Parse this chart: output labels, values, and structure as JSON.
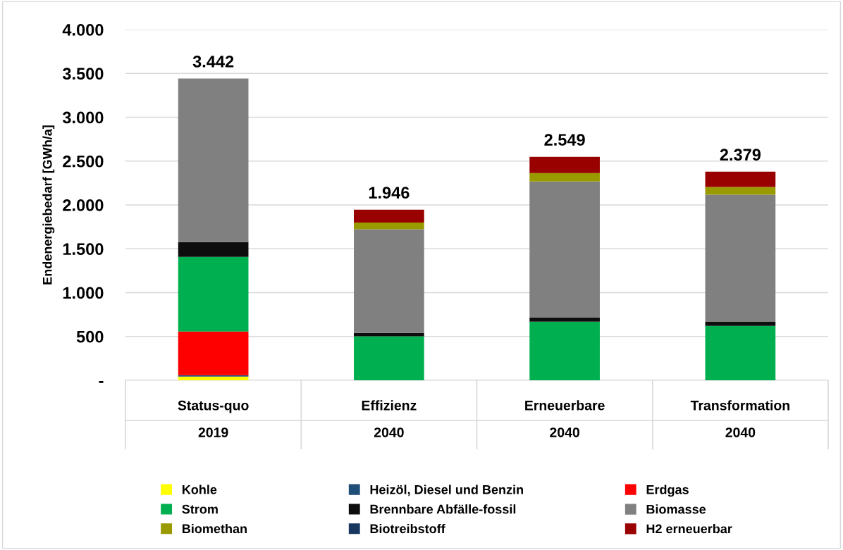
{
  "chart_data": {
    "type": "bar",
    "stacked": true,
    "ylabel": "Endenergiebedarf [GWh/a]",
    "categories": [
      "Status-quo\n2019",
      "Effizienz\n2040",
      "Erneuerbare\n2040",
      "Transformation\n2040"
    ],
    "series": [
      {
        "name": "Kohle",
        "color": "#ffff00",
        "values": [
          43,
          0,
          0,
          0
        ]
      },
      {
        "name": "Heizöl, Diesel und Benzin",
        "color": "#1f4e79",
        "values": [
          15,
          0,
          0,
          0
        ]
      },
      {
        "name": "Erdgas",
        "color": "#ff0000",
        "values": [
          498,
          0,
          0,
          0
        ]
      },
      {
        "name": "Strom",
        "color": "#00b050",
        "values": [
          852,
          502,
          669,
          620
        ]
      },
      {
        "name": "Brennbare Abfälle-fossil",
        "color": "#0d0d0d",
        "values": [
          169,
          38,
          48,
          46
        ]
      },
      {
        "name": "Biomasse",
        "color": "#808080",
        "values": [
          1865,
          1182,
          1550,
          1451
        ]
      },
      {
        "name": "Biomethan",
        "color": "#999900",
        "values": [
          0,
          77,
          96,
          88
        ]
      },
      {
        "name": "Biotreibstoff",
        "color": "#17375e",
        "values": [
          0,
          0,
          0,
          0
        ]
      },
      {
        "name": "H2 erneuerbar",
        "color": "#990000",
        "values": [
          0,
          147,
          186,
          174
        ]
      }
    ],
    "totals": [
      "3.442",
      "1.946",
      "2.549",
      "2.379"
    ],
    "ylim": [
      0,
      4000
    ],
    "yticks": [
      {
        "value": 0,
        "label": "-"
      },
      {
        "value": 500,
        "label": "500"
      },
      {
        "value": 1000,
        "label": "1.000"
      },
      {
        "value": 1500,
        "label": "1.500"
      },
      {
        "value": 2000,
        "label": "2.000"
      },
      {
        "value": 2500,
        "label": "2.500"
      },
      {
        "value": 3000,
        "label": "3.000"
      },
      {
        "value": 3500,
        "label": "3.500"
      },
      {
        "value": 4000,
        "label": "4.000"
      }
    ],
    "grid": "y",
    "legend": "bottom"
  }
}
